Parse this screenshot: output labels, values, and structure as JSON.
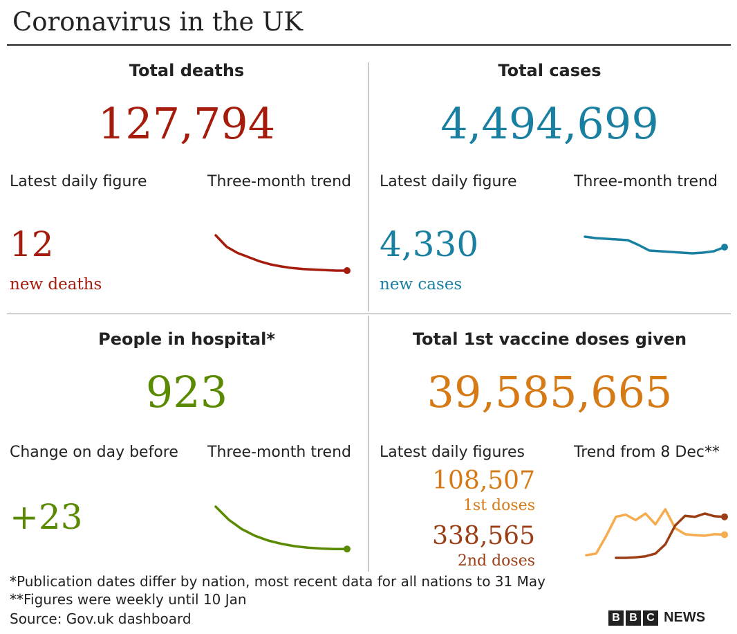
{
  "title": "Coronavirus in the UK",
  "deaths": {
    "heading": "Total deaths",
    "total": "127,794",
    "latest_label": "Latest daily figure",
    "trend_label": "Three-month trend",
    "latest_value": "12",
    "latest_caption": "new deaths",
    "color": "#a51c0d"
  },
  "cases": {
    "heading": "Total cases",
    "total": "4,494,699",
    "latest_label": "Latest daily figure",
    "trend_label": "Three-month trend",
    "latest_value": "4,330",
    "latest_caption": "new cases",
    "color": "#1a80a1"
  },
  "hospital": {
    "heading": "People in hospital*",
    "total": "923",
    "latest_label": "Change on day before",
    "trend_label": "Three-month trend",
    "latest_value": "+23",
    "color": "#5a8a00"
  },
  "vaccine": {
    "heading": "Total 1st vaccine doses given",
    "total": "39,585,665",
    "latest_label": "Latest daily figures",
    "trend_label": "Trend from 8 Dec**",
    "first_value": "108,507",
    "first_caption": "1st doses",
    "second_value": "338,565",
    "second_caption": "2nd doses",
    "color_first": "#d67a16",
    "color_first_line": "#f5ab4e",
    "color_second": "#9c3e15"
  },
  "footnotes": {
    "note1": "*Publication dates differ by nation, most recent data for all nations to 31 May",
    "note2": "**Figures were weekly until 10 Jan",
    "source": "Source: Gov.uk dashboard"
  },
  "brand": {
    "letters": [
      "B",
      "B",
      "C"
    ],
    "word": "NEWS"
  },
  "chart_data": [
    {
      "type": "line",
      "series": [
        {
          "values": [
            100,
            78,
            66,
            58,
            50,
            44,
            40,
            37,
            35,
            34,
            33,
            32,
            32
          ]
        }
      ]
    },
    {
      "type": "line",
      "series": [
        {
          "values": [
            56,
            54,
            53,
            52,
            51,
            44,
            36,
            35,
            34,
            33,
            32,
            33,
            35,
            41
          ]
        }
      ]
    },
    {
      "type": "line",
      "series": [
        {
          "values": [
            100,
            72,
            52,
            38,
            28,
            21,
            16,
            13,
            11,
            10,
            10
          ]
        }
      ]
    },
    {
      "type": "line",
      "series": [
        {
          "values": [
            5,
            8,
            40,
            76,
            80,
            70,
            82,
            62,
            90,
            55,
            44,
            42,
            41,
            44,
            43
          ]
        },
        {
          "values": [
            0,
            0,
            0,
            0,
            0,
            1,
            3,
            8,
            25,
            60,
            78,
            76,
            82,
            77,
            76
          ]
        }
      ]
    }
  ]
}
